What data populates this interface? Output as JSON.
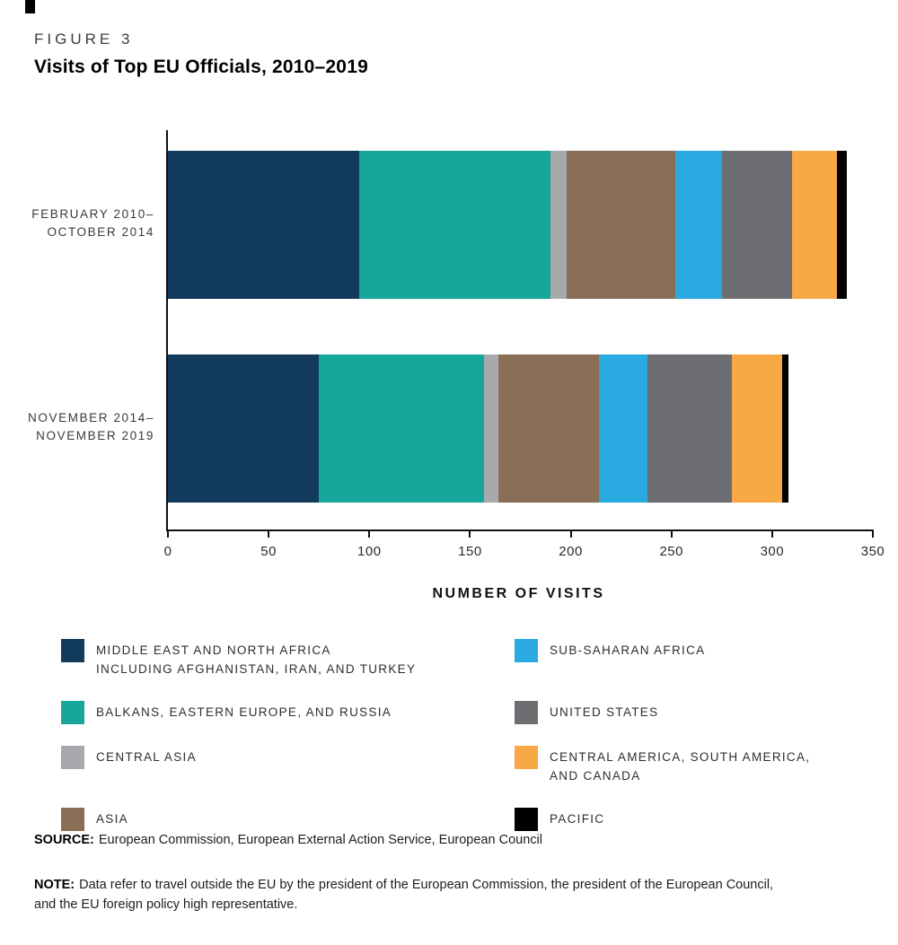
{
  "figure": {
    "label": "FIGURE 3",
    "title": "Visits of Top EU Officials, 2010–2019"
  },
  "chart_data": {
    "type": "bar",
    "orientation": "horizontal",
    "stacked": true,
    "title": "Visits of Top EU Officials, 2010–2019",
    "xlabel": "NUMBER OF VISITS",
    "xlim": [
      0,
      350
    ],
    "x_ticks": [
      0,
      50,
      100,
      150,
      200,
      250,
      300,
      350
    ],
    "grid": false,
    "legend_position": "bottom",
    "categories": [
      [
        "FEBRUARY 2010–",
        "OCTOBER 2014"
      ],
      [
        "NOVEMBER 2014–",
        "NOVEMBER 2019"
      ]
    ],
    "series": [
      {
        "name": "MIDDLE EAST AND NORTH AFRICA INCLUDING AFGHANISTAN, IRAN, AND TURKEY",
        "color": "#113a5d",
        "values": [
          95,
          75
        ]
      },
      {
        "name": "BALKANS, EASTERN EUROPE, AND RUSSIA",
        "color": "#17a79a",
        "values": [
          95,
          82
        ]
      },
      {
        "name": "CENTRAL ASIA",
        "color": "#a7a9ac",
        "values": [
          8,
          7
        ]
      },
      {
        "name": "ASIA",
        "color": "#8a6e55",
        "values": [
          54,
          50
        ]
      },
      {
        "name": "SUB-SAHARAN AFRICA",
        "color": "#29abe2",
        "values": [
          23,
          24
        ]
      },
      {
        "name": "UNITED STATES",
        "color": "#6d6e71",
        "values": [
          35,
          42
        ]
      },
      {
        "name": "CENTRAL AMERICA, SOUTH AMERICA, AND CANADA",
        "color": "#f8a845",
        "values": [
          22,
          25
        ]
      },
      {
        "name": "PACIFIC",
        "color": "#000000",
        "values": [
          5,
          3
        ]
      }
    ]
  },
  "legend": {
    "left": [
      {
        "series": 0,
        "lines": [
          "MIDDLE EAST AND NORTH AFRICA",
          "INCLUDING AFGHANISTAN, IRAN, AND TURKEY"
        ]
      },
      {
        "series": 1,
        "lines": [
          "BALKANS, EASTERN EUROPE, AND RUSSIA"
        ]
      },
      {
        "series": 2,
        "lines": [
          "CENTRAL ASIA"
        ]
      },
      {
        "series": 3,
        "lines": [
          "ASIA"
        ]
      }
    ],
    "right": [
      {
        "series": 4,
        "lines": [
          "SUB-SAHARAN AFRICA"
        ]
      },
      {
        "series": 5,
        "lines": [
          "UNITED STATES"
        ]
      },
      {
        "series": 6,
        "lines": [
          "CENTRAL AMERICA, SOUTH AMERICA,",
          "AND CANADA"
        ]
      },
      {
        "series": 7,
        "lines": [
          "PACIFIC"
        ]
      }
    ]
  },
  "source": {
    "prefix": "SOURCE:",
    "text": "European Commission, European External Action Service, European Council"
  },
  "note": {
    "prefix": "NOTE:",
    "text": "Data refer to travel outside the EU by the president of the European Commission, the president of the European Council, and the EU foreign policy high representative."
  }
}
